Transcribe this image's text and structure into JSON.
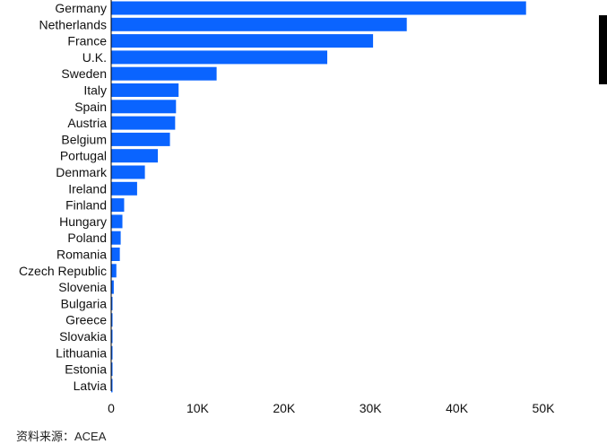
{
  "source_text": "资料来源：ACEA",
  "colors": {
    "bar": "#0a64ff",
    "edge_bar": "#000000",
    "axis_line": "#000000",
    "text": "#111111"
  },
  "chart_data": {
    "type": "bar",
    "orientation": "horizontal",
    "title": "",
    "xlabel": "",
    "ylabel": "",
    "categories": [
      "Germany",
      "Netherlands",
      "France",
      "U.K.",
      "Sweden",
      "Italy",
      "Spain",
      "Austria",
      "Belgium",
      "Portugal",
      "Denmark",
      "Ireland",
      "Finland",
      "Hungary",
      "Poland",
      "Romania",
      "Czech Republic",
      "Slovenia",
      "Bulgaria",
      "Greece",
      "Slovakia",
      "Lithuania",
      "Estonia",
      "Latvia"
    ],
    "values": [
      48000,
      34200,
      30300,
      25000,
      12200,
      7800,
      7500,
      7400,
      6800,
      5400,
      3900,
      3000,
      1500,
      1300,
      1100,
      1000,
      600,
      300,
      150,
      100,
      100,
      80,
      60,
      50
    ],
    "xlim": [
      0,
      55000
    ],
    "x_ticks": [
      0,
      10000,
      20000,
      30000,
      40000,
      50000
    ],
    "x_tick_labels": [
      "0",
      "10K",
      "20K",
      "30K",
      "40K",
      "50K"
    ],
    "grid": false,
    "legend": "none"
  }
}
